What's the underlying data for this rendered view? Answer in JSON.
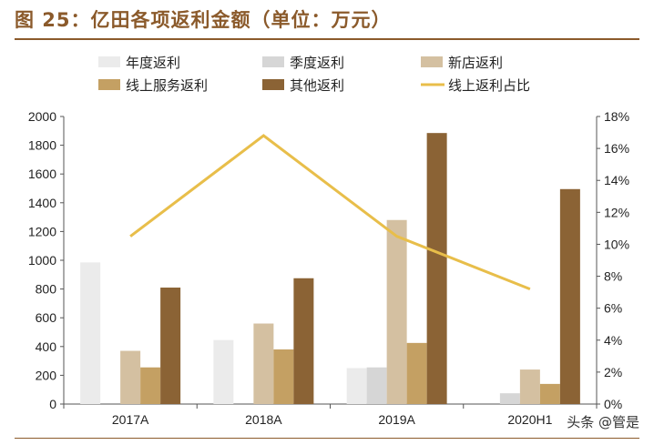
{
  "title": "图 25：亿田各项返利金额（单位：万元）",
  "watermark": "头条 @管是",
  "colors": {
    "title": "#8B5A2B",
    "rule": "#8B5A2B",
    "axis": "#555555"
  },
  "chart_data": {
    "type": "bar",
    "categories": [
      "2017A",
      "2018A",
      "2019A",
      "2020H1"
    ],
    "series": [
      {
        "name": "年度返利",
        "kind": "bar",
        "axis": "left",
        "color": "#EBEBEB",
        "values": [
          985,
          445,
          250,
          0
        ]
      },
      {
        "name": "季度返利",
        "kind": "bar",
        "axis": "left",
        "color": "#D6D6D6",
        "values": [
          0,
          0,
          255,
          75
        ]
      },
      {
        "name": "新店返利",
        "kind": "bar",
        "axis": "left",
        "color": "#D4C0A1",
        "values": [
          370,
          560,
          1280,
          240
        ]
      },
      {
        "name": "线上服务返利",
        "kind": "bar",
        "axis": "left",
        "color": "#C4A063",
        "values": [
          255,
          380,
          425,
          140
        ]
      },
      {
        "name": "其他返利",
        "kind": "bar",
        "axis": "left",
        "color": "#8B6335",
        "values": [
          810,
          875,
          1885,
          1495
        ]
      },
      {
        "name": "线上返利占比",
        "kind": "line",
        "axis": "right",
        "color": "#E8BE4A",
        "values": [
          0.105,
          0.168,
          0.105,
          0.072
        ]
      }
    ],
    "y_left": {
      "min": 0,
      "max": 2000,
      "ticks": [
        0,
        200,
        400,
        600,
        800,
        1000,
        1200,
        1400,
        1600,
        1800,
        2000
      ]
    },
    "y_right": {
      "min": 0,
      "max": 0.18,
      "ticks": [
        0,
        0.02,
        0.04,
        0.06,
        0.08,
        0.1,
        0.12,
        0.14,
        0.16,
        0.18
      ],
      "tick_labels": [
        "0%",
        "2%",
        "4%",
        "6%",
        "8%",
        "10%",
        "12%",
        "14%",
        "16%",
        "18%"
      ]
    },
    "legend": "top",
    "grid": false
  }
}
